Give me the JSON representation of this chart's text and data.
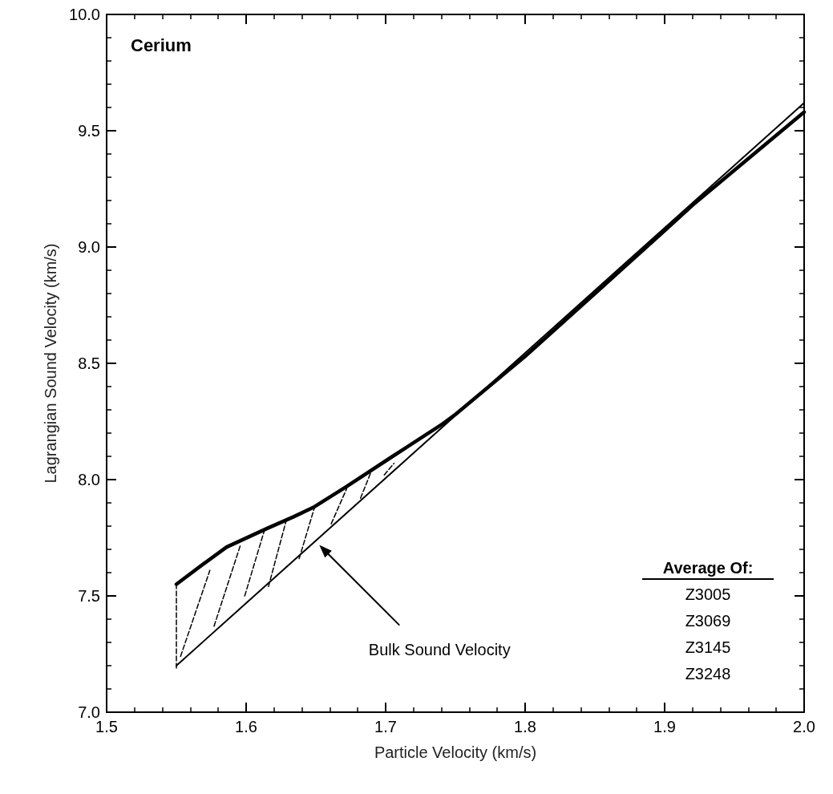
{
  "chart_data": {
    "type": "line",
    "title": "Cerium",
    "xlabel": "Particle Velocity (km/s)",
    "ylabel": "Lagrangian Sound Velocity (km/s)",
    "xlim": [
      1.5,
      2.0
    ],
    "xticks": [
      1.5,
      1.6,
      1.7,
      1.8,
      1.9,
      {
        "value": 2,
        "label": "2.0"
      }
    ],
    "ylim": [
      7.0,
      10.0
    ],
    "yticks": [
      {
        "value": 7,
        "label": "7.0"
      },
      7.5,
      {
        "value": 8,
        "label": "8.0"
      },
      8.5,
      {
        "value": 9,
        "label": "9.0"
      },
      9.5,
      {
        "value": 10,
        "label": "10.0"
      }
    ],
    "grid": false,
    "marker": "none",
    "line_style": "solid",
    "series": [
      {
        "color": "#000000",
        "x": [
          1.55,
          1.57,
          1.586,
          1.615,
          1.634,
          1.648,
          1.672,
          1.705,
          1.741,
          1.75,
          1.8,
          1.85,
          1.9,
          1.92,
          1.95,
          2.0
        ],
        "values": [
          7.55,
          7.64,
          7.71,
          7.79,
          7.84,
          7.88,
          7.97,
          8.1,
          8.24,
          8.28,
          8.53,
          8.8,
          9.07,
          9.18,
          9.33,
          9.58
        ]
      },
      {
        "color": "#000000",
        "x": [
          1.55,
          2.0
        ],
        "values": [
          7.2,
          9.62
        ]
      },
      {
        "color": "#000000",
        "line_style": "dashed",
        "x": [
          1.55,
          1.55,
          null,
          1.553,
          1.574,
          null,
          1.577,
          1.596,
          null,
          1.599,
          1.613,
          null,
          1.616,
          1.629,
          null,
          1.638,
          1.649,
          null,
          1.661,
          1.672,
          null,
          1.682,
          1.69,
          null,
          1.699,
          1.706
        ],
        "values": [
          7.19,
          7.55,
          null,
          7.24,
          7.61,
          null,
          7.37,
          7.72,
          null,
          7.5,
          7.78,
          null,
          7.54,
          7.83,
          null,
          7.66,
          7.88,
          null,
          7.81,
          7.96,
          null,
          7.92,
          8.04,
          null,
          8.02,
          8.07
        ]
      }
    ],
    "annotations": [
      "Bulk Sound Velocity",
      "Average Of:",
      "Z3005",
      "Z3069",
      "Z3145",
      "Z3248"
    ]
  }
}
